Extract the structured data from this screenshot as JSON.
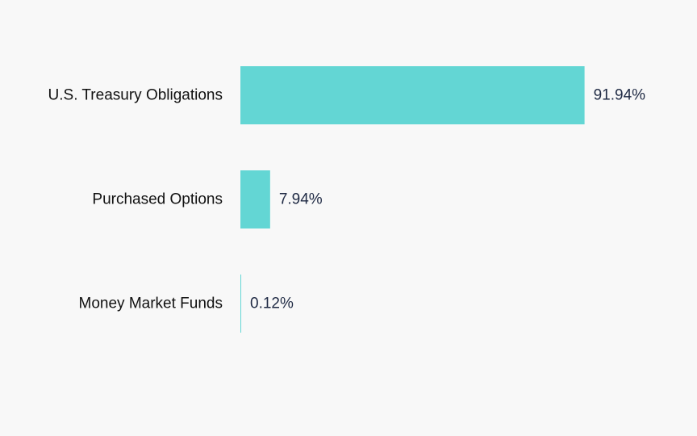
{
  "chart_data": {
    "type": "bar",
    "orientation": "horizontal",
    "categories": [
      "U.S. Treasury Obligations",
      "Purchased Options",
      "Money Market Funds"
    ],
    "values": [
      91.94,
      7.94,
      0.12
    ],
    "value_labels": [
      "91.94%",
      "7.94%",
      "0.12%"
    ],
    "unit": "%",
    "xlim": [
      0,
      100
    ],
    "grid": false,
    "legend": "none",
    "bar_color": "#63d6d4"
  },
  "colors": {
    "background": "#f8f8f8",
    "bar": "#63d6d4",
    "category_text": "#111111",
    "value_text": "#1f2a44"
  }
}
